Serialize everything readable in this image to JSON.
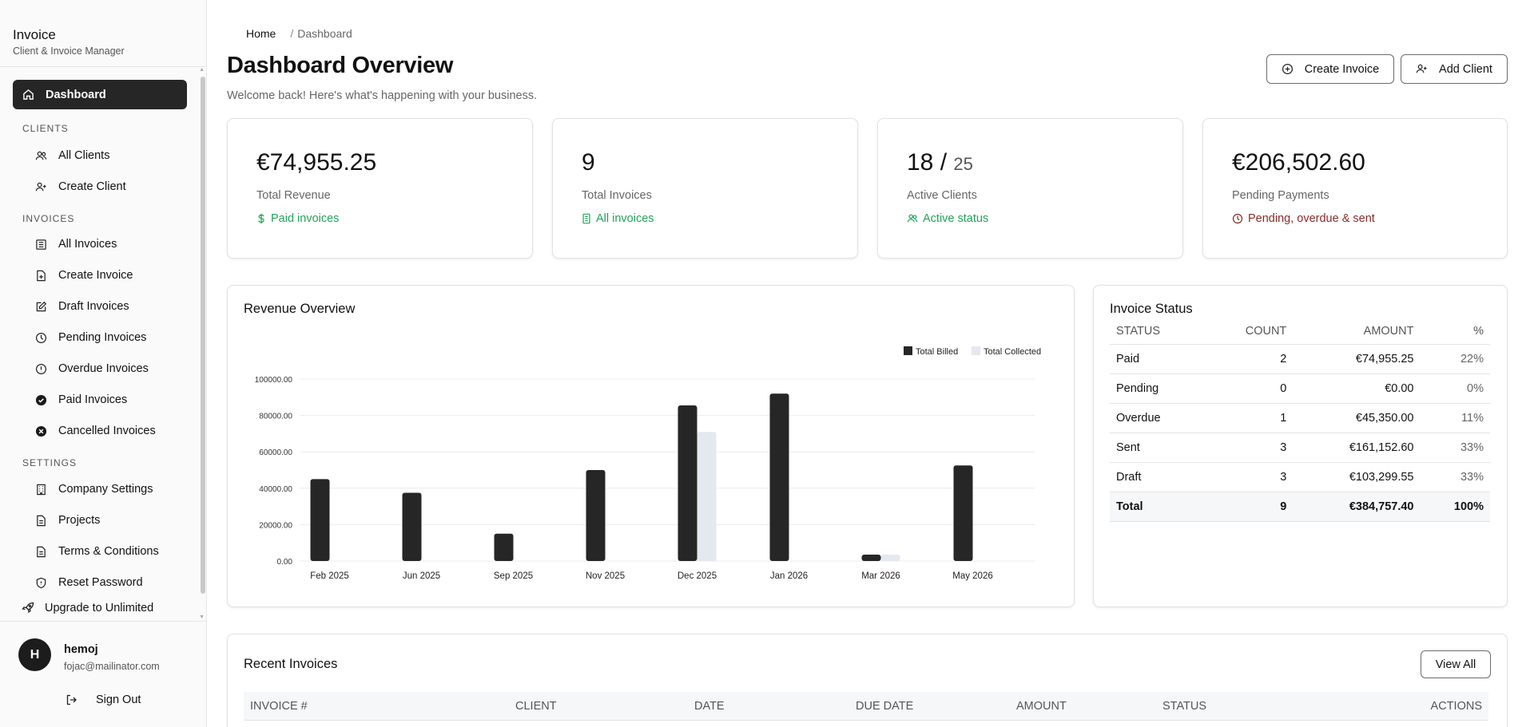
{
  "brand": {
    "title": "Invoice",
    "subtitle": "Client & Invoice Manager"
  },
  "sidebar": {
    "active": "Dashboard",
    "sections": {
      "clients": "CLIENTS",
      "invoices": "INVOICES",
      "settings": "SETTINGS"
    },
    "items": {
      "all_clients": "All Clients",
      "create_client": "Create Client",
      "all_invoices": "All Invoices",
      "create_invoice": "Create Invoice",
      "draft_invoices": "Draft Invoices",
      "pending_invoices": "Pending Invoices",
      "overdue_invoices": "Overdue Invoices",
      "paid_invoices": "Paid Invoices",
      "cancelled_invoices": "Cancelled Invoices",
      "company_settings": "Company Settings",
      "projects": "Projects",
      "terms": "Terms & Conditions",
      "reset_password": "Reset Password"
    },
    "upgrade": "Upgrade to Unlimited"
  },
  "user": {
    "initial": "H",
    "name": "hemoj",
    "email": "fojac@mailinator.com",
    "sign_out": "Sign Out"
  },
  "breadcrumb": {
    "home": "Home",
    "separator": "/",
    "current": "Dashboard"
  },
  "header": {
    "title": "Dashboard Overview",
    "subtitle": "Welcome back! Here's what's happening with your business.",
    "create_invoice": "Create Invoice",
    "add_client": "Add Client"
  },
  "stats": {
    "revenue": {
      "value": "€74,955.25",
      "label": "Total Revenue",
      "note": "Paid invoices"
    },
    "invoices": {
      "value": "9",
      "label": "Total Invoices",
      "note": "All invoices"
    },
    "clients": {
      "value": "18 /",
      "denominator": "25",
      "label": "Active Clients",
      "note": "Active status"
    },
    "pending": {
      "value": "€206,502.60",
      "label": "Pending Payments",
      "note": "Pending, overdue & sent"
    }
  },
  "colors": {
    "accent_dark": "#262626",
    "positive": "#22a35a",
    "warning": "#8b2a2a",
    "billed": "#262626",
    "collected": "#e4e9f0"
  },
  "revenue_card": {
    "title": "Revenue Overview"
  },
  "chart_data": {
    "type": "bar",
    "categories": [
      "Feb 2025",
      "Jun 2025",
      "Sep 2025",
      "Nov 2025",
      "Dec 2025",
      "Jan 2026",
      "Mar 2026",
      "May 2026"
    ],
    "series": [
      {
        "name": "Total Billed",
        "values": [
          45000,
          37500,
          15000,
          50000,
          85500,
          92000,
          3500,
          52500
        ]
      },
      {
        "name": "Total Collected",
        "values": [
          0,
          0,
          0,
          0,
          71000,
          0,
          3500,
          0
        ]
      }
    ],
    "yticks": [
      "0.00",
      "20000.00",
      "40000.00",
      "60000.00",
      "80000.00",
      "100000.00"
    ],
    "ylim": [
      0,
      100000
    ],
    "legend_position": "top-right",
    "grid": true
  },
  "status_card": {
    "title": "Invoice Status",
    "headers": [
      "STATUS",
      "COUNT",
      "AMOUNT",
      "%"
    ],
    "rows": [
      [
        "Paid",
        "2",
        "€74,955.25",
        "22%"
      ],
      [
        "Pending",
        "0",
        "€0.00",
        "0%"
      ],
      [
        "Overdue",
        "1",
        "€45,350.00",
        "11%"
      ],
      [
        "Sent",
        "3",
        "€161,152.60",
        "33%"
      ],
      [
        "Draft",
        "3",
        "€103,299.55",
        "33%"
      ]
    ],
    "total": [
      "Total",
      "9",
      "€384,757.40",
      "100%"
    ]
  },
  "recent": {
    "title": "Recent Invoices",
    "view_all": "View All",
    "headers": [
      "INVOICE #",
      "CLIENT",
      "DATE",
      "DUE DATE",
      "AMOUNT",
      "STATUS",
      "ACTIONS"
    ]
  }
}
